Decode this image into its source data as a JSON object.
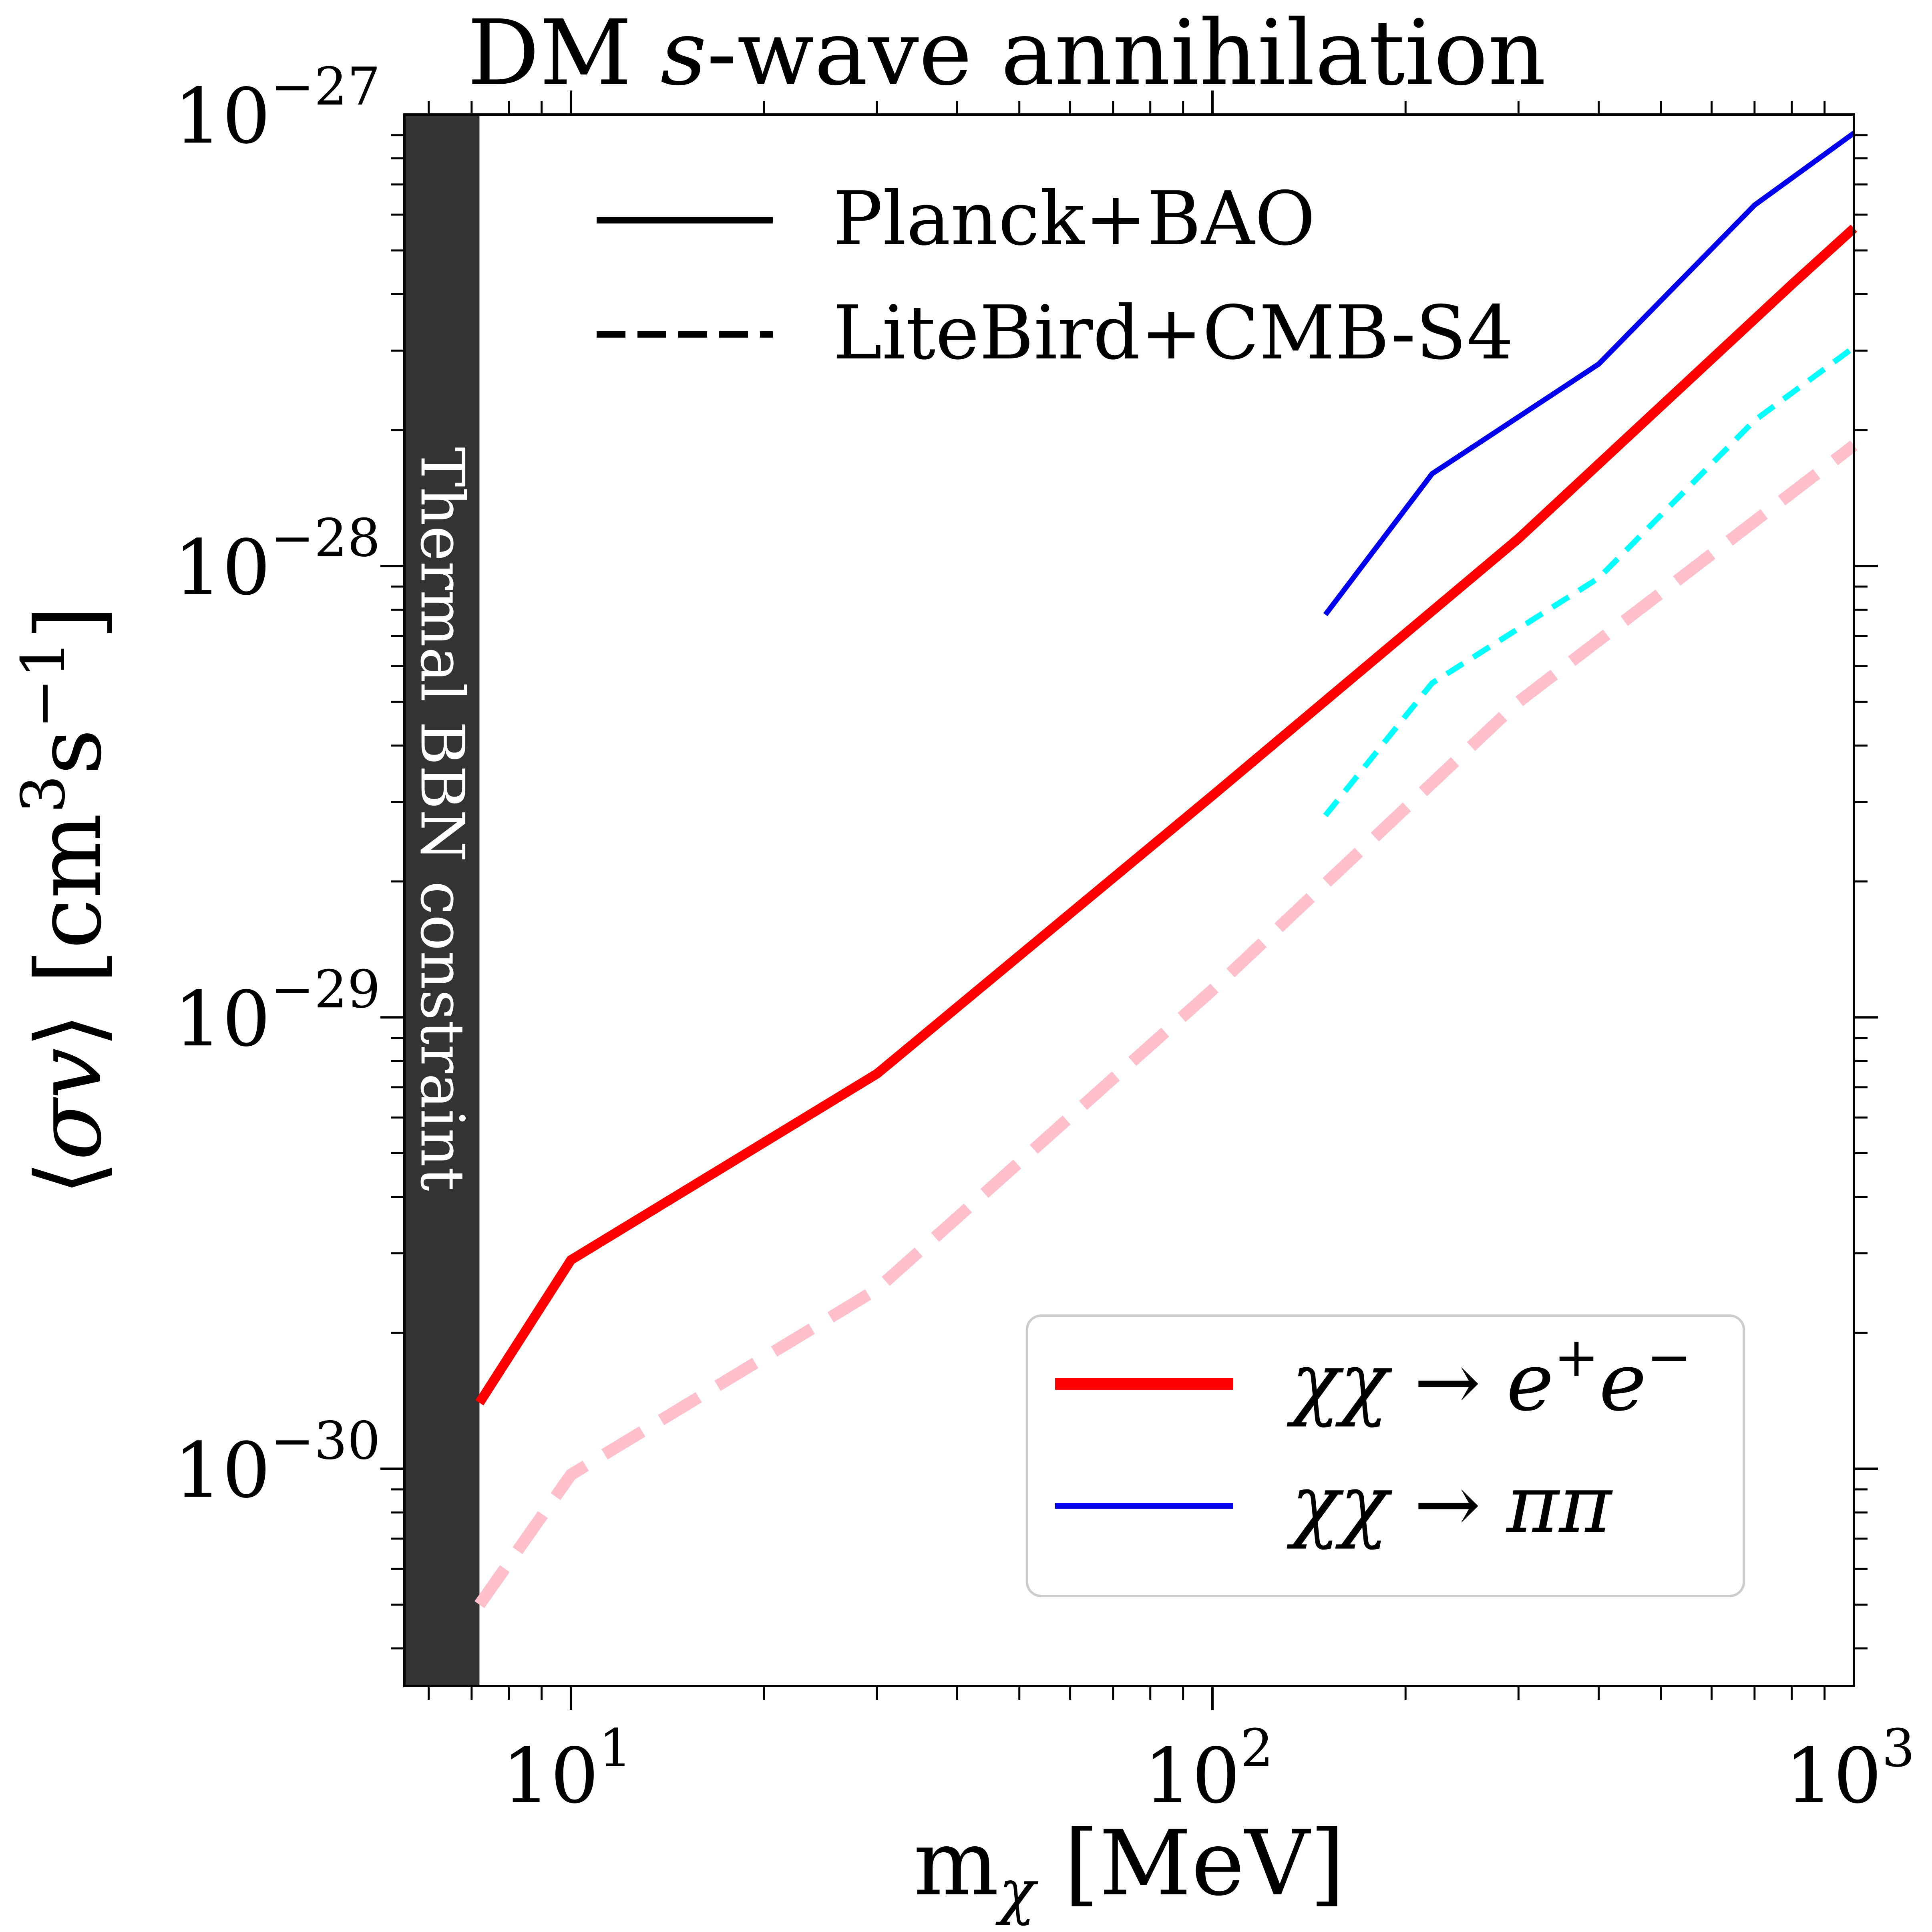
{
  "chart_data": {
    "type": "line",
    "title_parts": [
      "DM ",
      "s",
      "-wave annihilation"
    ],
    "xlabel_parts": [
      "m",
      "χ",
      " [MeV]"
    ],
    "ylabel_parts": [
      "⟨",
      "σv",
      "⟩ [cm",
      "3",
      "s",
      "−1",
      "]"
    ],
    "xscale": "log",
    "yscale": "log",
    "xlim": [
      5.5,
      1000
    ],
    "ylim": [
      3.3e-31,
      1e-27
    ],
    "x_ticks": [
      {
        "value": 10,
        "base": "10",
        "exp": "1"
      },
      {
        "value": 100,
        "base": "10",
        "exp": "2"
      },
      {
        "value": 1000,
        "base": "10",
        "exp": "3"
      }
    ],
    "y_ticks": [
      {
        "value": 1e-30,
        "base": "10",
        "exp": "−30"
      },
      {
        "value": 1e-29,
        "base": "10",
        "exp": "−29"
      },
      {
        "value": 1e-28,
        "base": "10",
        "exp": "−28"
      },
      {
        "value": 1e-27,
        "base": "10",
        "exp": "−27"
      }
    ],
    "excluded_region": {
      "label": "Thermal BBN constraint",
      "x_min": 5.5,
      "x_max": 7.2,
      "color": "#333333"
    },
    "style_legend": {
      "location": "upper-left",
      "entries": [
        {
          "label": "Planck+BAO",
          "dash": "solid"
        },
        {
          "label": "LiteBird+CMB-S4",
          "dash": "dashed"
        }
      ]
    },
    "channel_legend": {
      "location": "lower-right",
      "entries": [
        {
          "label_parts": [
            "χχ → ",
            "e",
            "+",
            "e",
            "−"
          ],
          "color": "#ff0000"
        },
        {
          "label_parts": [
            "χχ → ππ"
          ],
          "color": "#0000ee"
        }
      ]
    },
    "series": [
      {
        "name": "ee-planck",
        "channel": "χχ → e+e−",
        "experiment": "Planck+BAO",
        "color": "#ff0000",
        "dash": "solid",
        "x": [
          7.2,
          10,
          30,
          100,
          300,
          800,
          1000
        ],
        "y": [
          1.4e-30,
          2.9e-30,
          7.5e-30,
          3.1e-29,
          1.15e-28,
          4.2e-28,
          5.6e-28
        ]
      },
      {
        "name": "ee-litebird",
        "channel": "χχ → e+e−",
        "experiment": "LiteBird+CMB-S4",
        "color": "#ffc0cb",
        "dash": "dashed",
        "x": [
          7.2,
          10,
          30,
          100,
          300,
          1000
        ],
        "y": [
          5e-31,
          9.7e-31,
          2.5e-30,
          1.15e-29,
          5e-29,
          1.85e-28
        ]
      },
      {
        "name": "pipi-planck",
        "channel": "χχ → ππ",
        "experiment": "Planck+BAO",
        "color": "#0000ee",
        "dash": "solid",
        "x": [
          150,
          220,
          400,
          700,
          1000
        ],
        "y": [
          7.8e-29,
          1.6e-28,
          2.8e-28,
          6.3e-28,
          9.1e-28
        ]
      },
      {
        "name": "pipi-litebird",
        "channel": "χχ → ππ",
        "experiment": "LiteBird+CMB-S4",
        "color": "#00ffff",
        "dash": "dashed",
        "x": [
          150,
          220,
          400,
          700,
          1000
        ],
        "y": [
          2.8e-29,
          5.5e-29,
          9.4e-29,
          2.1e-28,
          3.05e-28
        ]
      }
    ]
  }
}
